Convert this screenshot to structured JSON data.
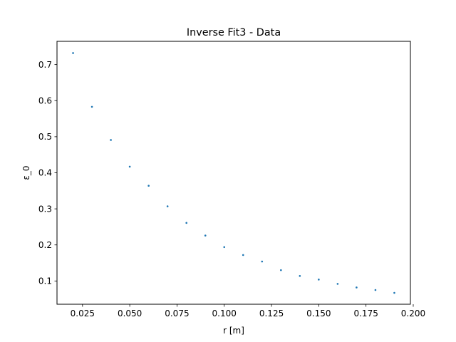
{
  "chart_data": {
    "type": "scatter",
    "title": "Inverse Fit3 - Data",
    "xlabel": "r [m]",
    "ylabel": "ε_0",
    "xlim": [
      0.0115,
      0.1985
    ],
    "ylim": [
      0.0355,
      0.7645
    ],
    "xticks": [
      0.025,
      0.05,
      0.075,
      0.1,
      0.125,
      0.15,
      0.175,
      0.2
    ],
    "xtick_labels": [
      "0.025",
      "0.050",
      "0.075",
      "0.100",
      "0.125",
      "0.150",
      "0.175",
      "0.200"
    ],
    "yticks": [
      0.1,
      0.2,
      0.3,
      0.4,
      0.5,
      0.6,
      0.7
    ],
    "ytick_labels": [
      "0.1",
      "0.2",
      "0.3",
      "0.4",
      "0.5",
      "0.6",
      "0.7"
    ],
    "grid": false,
    "legend": "none",
    "color": "#1f77b4",
    "series": [
      {
        "x": [
          0.02,
          0.03,
          0.04,
          0.05,
          0.06,
          0.07,
          0.08,
          0.09,
          0.1,
          0.11,
          0.12,
          0.13,
          0.14,
          0.15,
          0.16,
          0.17,
          0.18,
          0.19
        ],
        "y": [
          0.732,
          0.583,
          0.491,
          0.417,
          0.364,
          0.307,
          0.261,
          0.226,
          0.194,
          0.172,
          0.154,
          0.13,
          0.114,
          0.104,
          0.092,
          0.082,
          0.075,
          0.067
        ]
      }
    ]
  }
}
